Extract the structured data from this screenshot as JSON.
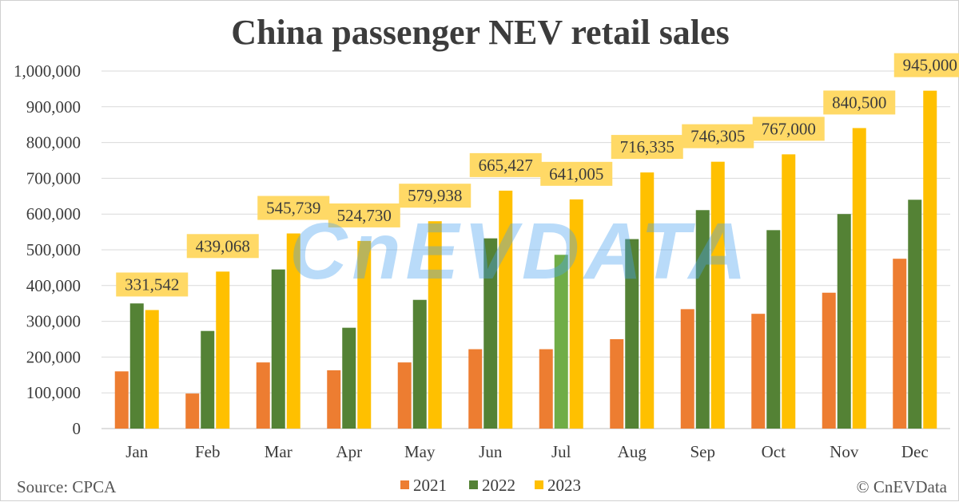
{
  "chart_data": {
    "type": "bar",
    "title": "China passenger NEV retail sales",
    "categories": [
      "Jan",
      "Feb",
      "Mar",
      "Apr",
      "May",
      "Jun",
      "Jul",
      "Aug",
      "Sep",
      "Oct",
      "Nov",
      "Dec"
    ],
    "series": [
      {
        "name": "2021",
        "color": "#ed7d31",
        "values": [
          160000,
          98000,
          185000,
          163000,
          185000,
          222000,
          222000,
          250000,
          334000,
          321000,
          380000,
          475000
        ]
      },
      {
        "name": "2022",
        "color": "#548235",
        "values": [
          350000,
          273000,
          445000,
          282000,
          360000,
          532000,
          486000,
          530000,
          611000,
          555000,
          600000,
          640000
        ]
      },
      {
        "name": "2023",
        "color": "#ffc000",
        "values": [
          331542,
          439068,
          545739,
          524730,
          579938,
          665427,
          641005,
          716335,
          746305,
          767000,
          840500,
          945000
        ]
      }
    ],
    "data_labels": {
      "series": "2023",
      "labels": [
        "331,542",
        "439,068",
        "545,739",
        "524,730",
        "579,938",
        "665,427",
        "641,005",
        "716,335",
        "746,305",
        "767,000",
        "840,500",
        "945,000"
      ],
      "background": "#ffd966"
    },
    "highlight": {
      "series": "2022",
      "category": "Jul",
      "color": "#70ad47"
    },
    "ylim": [
      0,
      1000000
    ],
    "yticks": [
      0,
      100000,
      200000,
      300000,
      400000,
      500000,
      600000,
      700000,
      800000,
      900000,
      1000000
    ],
    "ytick_labels": [
      "0",
      "100,000",
      "200,000",
      "300,000",
      "400,000",
      "500,000",
      "600,000",
      "700,000",
      "800,000",
      "900,000",
      "1,000,000"
    ],
    "grid": true,
    "legend": "bottom-center"
  },
  "footer": {
    "source": "Source: CPCA",
    "copyright": "© CnEVData"
  },
  "watermark": "CnEVDATA"
}
